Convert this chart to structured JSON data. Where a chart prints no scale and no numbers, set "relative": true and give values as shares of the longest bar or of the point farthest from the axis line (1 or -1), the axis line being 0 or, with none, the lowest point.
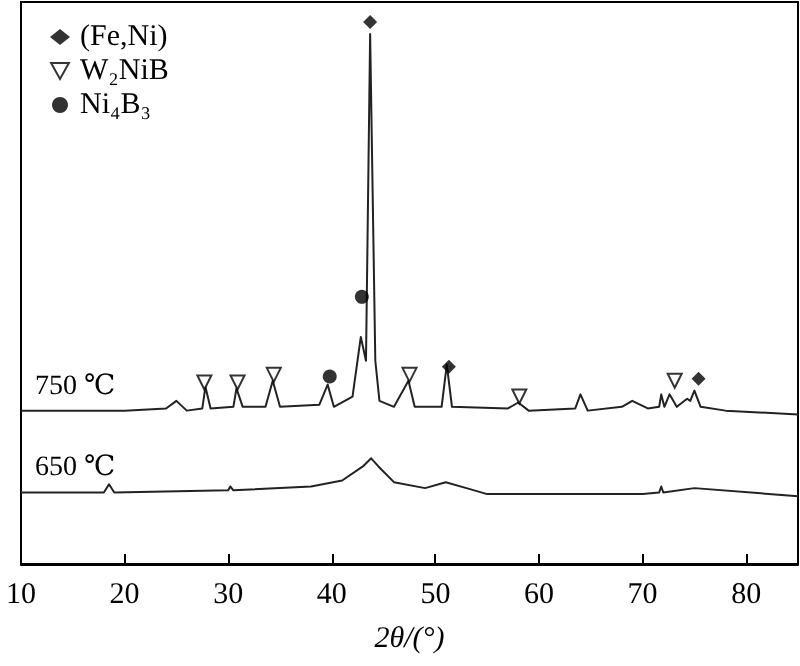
{
  "chart_data": {
    "type": "line",
    "relative": true,
    "xlabel": "2θ/(°)",
    "xlim": [
      10,
      85
    ],
    "xticks": [
      10,
      20,
      30,
      40,
      50,
      60,
      70,
      80
    ],
    "legend": "top left",
    "grid": false,
    "tick_labels": "x",
    "series": [
      {
        "name": "750 ℃",
        "color": "#222222",
        "marker": "none",
        "x": [
          10,
          20,
          24,
          25,
          26,
          27.5,
          27.8,
          28.3,
          30.5,
          30.8,
          31.4,
          33.6,
          34.3,
          35,
          38.8,
          39.6,
          40.2,
          42,
          42.8,
          43.3,
          43.7,
          44.2,
          44.6,
          46,
          47.4,
          48,
          50.6,
          51.1,
          51.6,
          57,
          58,
          59,
          63.5,
          64,
          64.7,
          68,
          69,
          70.5,
          71.6,
          71.8,
          72.1,
          72.6,
          73.3,
          74.3,
          74.6,
          75,
          75.6,
          78,
          85
        ],
        "values": [
          0.283,
          0.283,
          0.287,
          0.301,
          0.283,
          0.287,
          0.327,
          0.287,
          0.29,
          0.324,
          0.29,
          0.29,
          0.338,
          0.29,
          0.294,
          0.331,
          0.29,
          0.309,
          0.419,
          0.375,
          0.978,
          0.375,
          0.301,
          0.29,
          0.338,
          0.29,
          0.29,
          0.368,
          0.29,
          0.287,
          0.298,
          0.283,
          0.287,
          0.313,
          0.283,
          0.29,
          0.301,
          0.287,
          0.29,
          0.313,
          0.29,
          0.313,
          0.29,
          0.305,
          0.301,
          0.32,
          0.29,
          0.283,
          0.276
        ]
      },
      {
        "name": "650 ℃",
        "color": "#222222",
        "marker": "none",
        "x": [
          10,
          18,
          18.5,
          19,
          30,
          30.2,
          30.5,
          38,
          41,
          43,
          43.8,
          44.5,
          46,
          49,
          51,
          53,
          55,
          70,
          71.6,
          71.8,
          72,
          75,
          85
        ],
        "values": [
          0.132,
          0.132,
          0.147,
          0.132,
          0.136,
          0.143,
          0.136,
          0.143,
          0.154,
          0.18,
          0.195,
          0.18,
          0.151,
          0.14,
          0.151,
          0.14,
          0.129,
          0.129,
          0.132,
          0.143,
          0.132,
          0.14,
          0.125
        ]
      },
      {
        "name": "(Fe,Ni)",
        "type": "scatter",
        "color": "#000000",
        "marker": "diamond",
        "x": [
          43.7,
          51.3,
          75.4
        ],
        "values": [
          1,
          0.364,
          0.342
        ]
      },
      {
        "name": "W₂NiB",
        "type": "scatter",
        "color": "#000000",
        "marker": "triangle",
        "x": [
          27.7,
          30.9,
          34.4,
          47.5,
          58.1,
          73.1
        ],
        "values": [
          0.335,
          0.335,
          0.349,
          0.349,
          0.309,
          0.338
        ]
      },
      {
        "name": "Ni₄B₃",
        "type": "scatter",
        "color": "#000000",
        "marker": "circle",
        "x": [
          39.8,
          42.9
        ],
        "values": [
          0.346,
          0.493
        ]
      }
    ]
  }
}
